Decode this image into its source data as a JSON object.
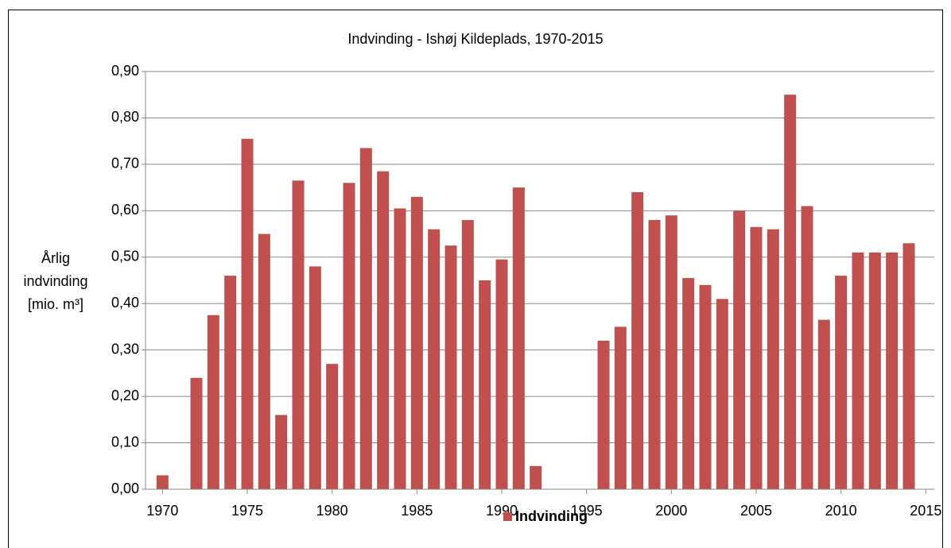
{
  "chart_data": {
    "type": "bar",
    "title": "Indvinding - Ishøj Kildeplads, 1970-2015",
    "y_label": [
      "Årlig",
      "indvinding",
      "[mio. m³]"
    ],
    "x": [
      1970,
      1972,
      1973,
      1974,
      1975,
      1976,
      1977,
      1978,
      1979,
      1980,
      1981,
      1982,
      1983,
      1984,
      1985,
      1986,
      1987,
      1988,
      1989,
      1990,
      1991,
      1992,
      1996,
      1997,
      1998,
      1999,
      2000,
      2001,
      2002,
      2003,
      2004,
      2005,
      2006,
      2007,
      2008,
      2009,
      2010,
      2011,
      2012,
      2013,
      2014
    ],
    "series": [
      {
        "name": "Indvinding",
        "color": "#c0504d",
        "values": [
          0.03,
          0.24,
          0.375,
          0.46,
          0.755,
          0.55,
          0.16,
          0.665,
          0.48,
          0.27,
          0.66,
          0.735,
          0.685,
          0.605,
          0.63,
          0.56,
          0.525,
          0.58,
          0.45,
          0.495,
          0.65,
          0.05,
          0.32,
          0.35,
          0.64,
          0.58,
          0.59,
          0.455,
          0.44,
          0.41,
          0.6,
          0.565,
          0.56,
          0.85,
          0.61,
          0.365,
          0.46,
          0.51,
          0.51,
          0.51,
          0.53
        ]
      }
    ],
    "xlim": [
      1969,
      2015.5
    ],
    "xticks": [
      1970,
      1975,
      1980,
      1985,
      1990,
      1995,
      2000,
      2005,
      2010,
      2015
    ],
    "ylim": [
      0,
      0.9
    ],
    "yticks": [
      {
        "value": 0,
        "label": "0,00"
      },
      {
        "value": 0.1,
        "label": "0,10"
      },
      {
        "value": 0.2,
        "label": "0,20"
      },
      {
        "value": 0.3,
        "label": "0,30"
      },
      {
        "value": 0.4,
        "label": "0,40"
      },
      {
        "value": 0.5,
        "label": "0,50"
      },
      {
        "value": 0.6,
        "label": "0,60"
      },
      {
        "value": 0.7,
        "label": "0,70"
      },
      {
        "value": 0.8,
        "label": "0,80"
      },
      {
        "value": 0.9,
        "label": "0,90"
      }
    ],
    "grid": true,
    "legend": "bottom"
  }
}
